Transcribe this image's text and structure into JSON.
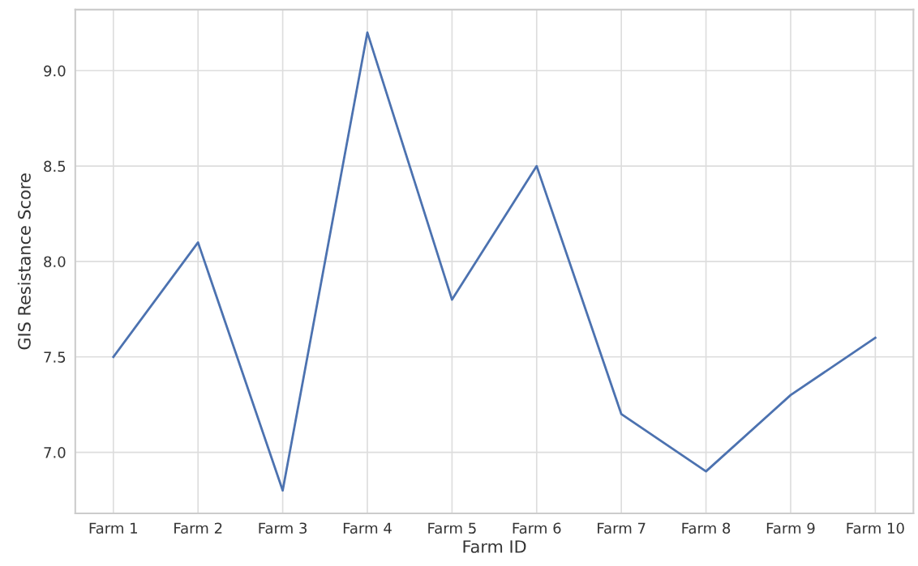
{
  "chart_data": {
    "type": "line",
    "xlabel": "Farm ID",
    "ylabel": "GIS Resistance Score",
    "categories": [
      "Farm 1",
      "Farm 2",
      "Farm 3",
      "Farm 4",
      "Farm 5",
      "Farm 6",
      "Farm 7",
      "Farm 8",
      "Farm 9",
      "Farm 10"
    ],
    "series": [
      {
        "color": "#4c72b0",
        "values": [
          7.5,
          8.1,
          6.8,
          9.2,
          7.8,
          8.5,
          7.2,
          6.9,
          7.3,
          7.6
        ]
      }
    ],
    "ylim": [
      6.68,
      9.32
    ],
    "yticks": [
      {
        "value": 7.0,
        "label": "7.0"
      },
      {
        "value": 7.5,
        "label": "7.5"
      },
      {
        "value": 8.0,
        "label": "8.0"
      },
      {
        "value": 8.5,
        "label": "8.5"
      },
      {
        "value": 9.0,
        "label": "9.0"
      }
    ],
    "grid": true,
    "marker": "none",
    "line_style": "solid"
  }
}
